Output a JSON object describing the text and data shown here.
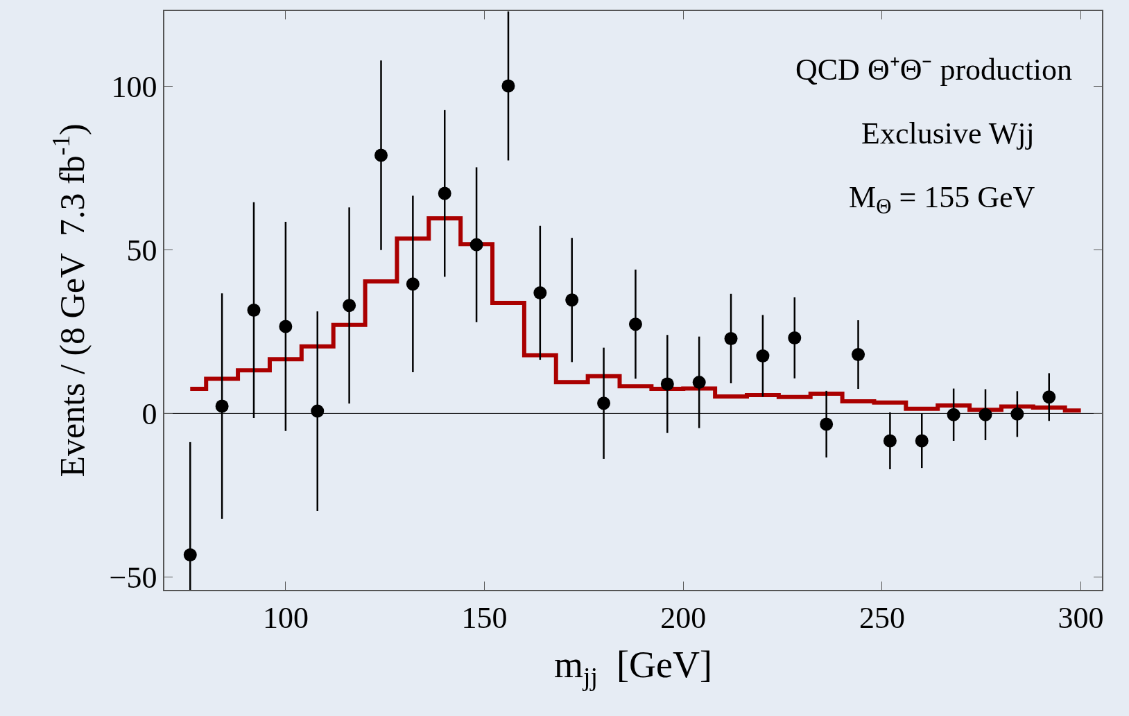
{
  "chart_data": {
    "type": "scatter",
    "xlabel": "m$_{jj}$  [GeV]",
    "ylabel": "Events / (8 GeV  7.3 fb$^{-1}$)",
    "annotations": [
      "QCD Θ⁺Θ⁻ production",
      "Exclusive Wjj",
      "M$_{Θ}$ = 155 GeV"
    ],
    "series": [
      {
        "type": "step",
        "color": "#aa0000",
        "marker": "none",
        "x": [
          76,
          84,
          92,
          100,
          108,
          116,
          124,
          132,
          140,
          148,
          156,
          164,
          172,
          180,
          188,
          196,
          204,
          212,
          220,
          228,
          236,
          244,
          252,
          260,
          268,
          276,
          284,
          292,
          300
        ],
        "values": [
          7.5,
          10.6,
          13.2,
          16.6,
          20.5,
          27.1,
          40.4,
          53.5,
          59.7,
          51.8,
          33.8,
          17.8,
          9.6,
          11.4,
          8.3,
          7.5,
          7.6,
          5.2,
          5.6,
          5.0,
          6.0,
          3.7,
          3.3,
          1.4,
          2.4,
          1.1,
          2.1,
          1.8,
          0.9
        ]
      },
      {
        "color": "#000000",
        "marker": "circle",
        "x": [
          76,
          84,
          92,
          100,
          108,
          116,
          124,
          132,
          140,
          148,
          156,
          164,
          172,
          180,
          188,
          196,
          204,
          212,
          220,
          228,
          236,
          244,
          252,
          260,
          268,
          276,
          284,
          292
        ],
        "values": [
          -43.3,
          2.2,
          31.6,
          26.6,
          0.7,
          33,
          79,
          39.6,
          67.3,
          51.6,
          100.2,
          36.9,
          34.7,
          3.1,
          27.3,
          9,
          9.5,
          22.9,
          17.6,
          23.1,
          -3.3,
          18,
          -8.4,
          -8.4,
          -0.4,
          -0.4,
          -0.2,
          5
        ],
        "errors": [
          [
            -54,
            -8.8
          ],
          34.5,
          33,
          32,
          30.5,
          30,
          29,
          27,
          25.5,
          23.7,
          22.8,
          20.5,
          19,
          17,
          16.7,
          15,
          14,
          13.7,
          12.5,
          12.4,
          10.2,
          10.5,
          8.7,
          8.3,
          8,
          7.8,
          7,
          7.3
        ]
      }
    ],
    "ref_lines": [
      {
        "axis": "y",
        "value": 0,
        "color": "#000000"
      }
    ],
    "xlim": [
      69.5,
      305.3
    ],
    "xticks": [
      100,
      150,
      200,
      250,
      300
    ],
    "ylim": [
      -54,
      123.1
    ],
    "yticks": [
      -50,
      0,
      50,
      100
    ],
    "grid": false
  }
}
